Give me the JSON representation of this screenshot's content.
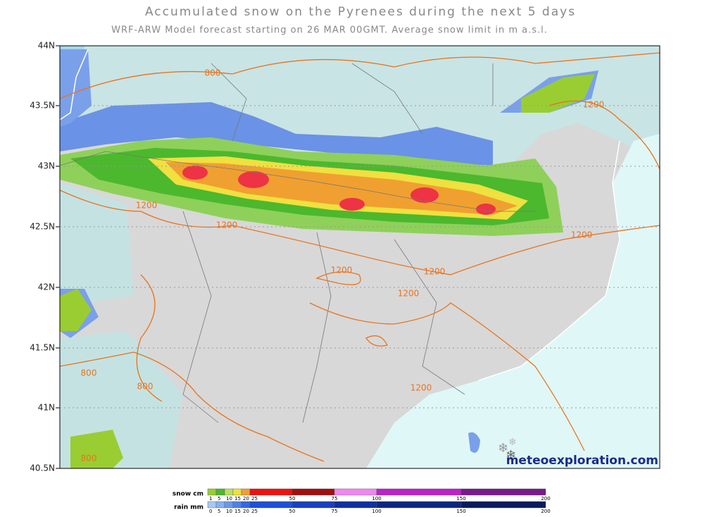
{
  "title": "Accumulated snow on the Pyrenees during the next 5 days",
  "subtitle": "WRF-ARW Model forecast starting on 26 MAR 00GMT.  Average snow limit in m a.s.l.",
  "lat_labels": [
    "44N",
    "43.5N",
    "43N",
    "42.5N",
    "42N",
    "41.5N",
    "41N",
    "40.5N"
  ],
  "contour_labels": [
    "800",
    "1200",
    "1200",
    "1200",
    "1200",
    "1200",
    "1200",
    "1200",
    "1200",
    "800",
    "800",
    "800"
  ],
  "brand": "meteoexploration.com",
  "legend": {
    "snow_label": "snow cm",
    "snow_ticks": [
      1,
      5,
      10,
      15,
      20,
      25,
      50,
      75,
      100,
      150,
      200
    ],
    "snow_colors": [
      "#9acd32",
      "#4cb82e",
      "#bde05a",
      "#f0e040",
      "#f0a030",
      "#ee1111",
      "#a01010",
      "#ee88ee",
      "#bb22cc",
      "#7a1a8a"
    ],
    "rain_label": "rain mm",
    "rain_ticks": [
      0,
      5,
      10,
      15,
      20,
      25,
      50,
      75,
      100,
      150,
      200
    ],
    "rain_colors": [
      "#a8c8f0",
      "#88b0f0",
      "#6898ec",
      "#5080e8",
      "#3868e0",
      "#2050d8",
      "#1840c0",
      "#1030a0",
      "#0c2680",
      "#081c60"
    ]
  }
}
